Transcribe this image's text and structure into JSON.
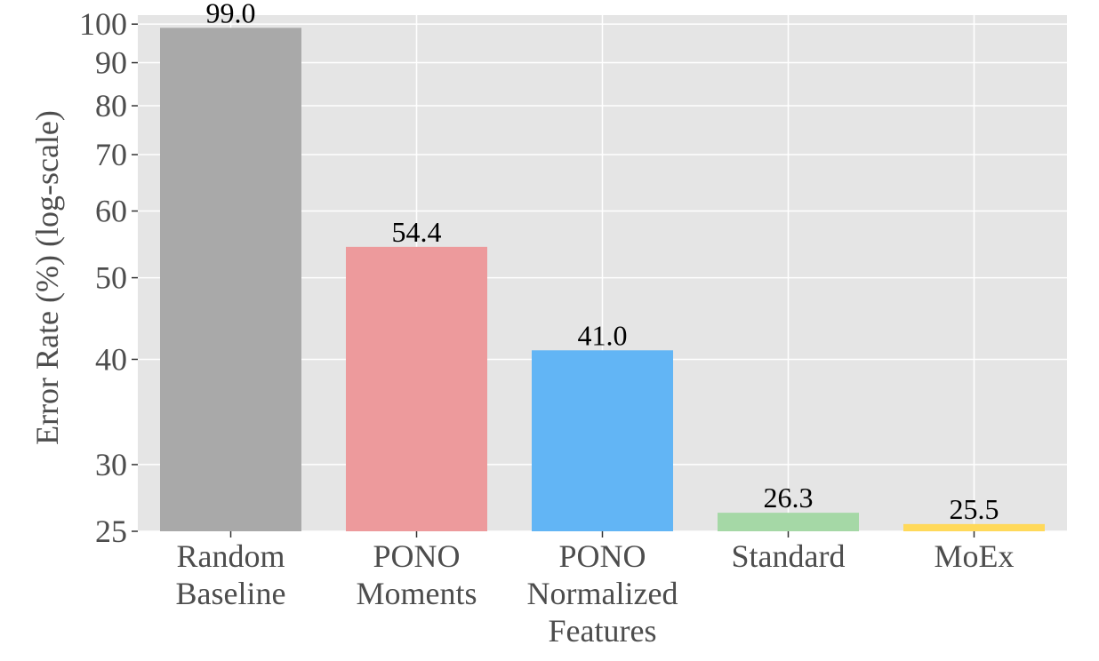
{
  "chart_data": {
    "type": "bar",
    "categories": [
      [
        "Random",
        "Baseline"
      ],
      [
        "PONO",
        "Moments"
      ],
      [
        "PONO",
        "Normalized",
        "Features"
      ],
      [
        "Standard"
      ],
      [
        "MoEx"
      ]
    ],
    "values": [
      99.0,
      54.4,
      41.0,
      26.3,
      25.5
    ],
    "value_labels": [
      "99.0",
      "54.4",
      "41.0",
      "26.3",
      "25.5"
    ],
    "colors": [
      "#a9a9a9",
      "#ed9a9c",
      "#62b5f5",
      "#a5d8a6",
      "#ffd95a"
    ],
    "ylabel": "Error Rate (%) (log-scale)",
    "xlabel": "",
    "title": "",
    "yscale": "log",
    "ylim": [
      25,
      102.5
    ],
    "yticks": [
      25,
      30,
      40,
      50,
      60,
      70,
      80,
      90,
      100
    ],
    "ytick_labels": [
      "25",
      "30",
      "40",
      "50",
      "60",
      "70",
      "80",
      "90",
      "100"
    ],
    "grid": true,
    "background": "#e5e5e5",
    "grid_color": "#ffffff"
  }
}
